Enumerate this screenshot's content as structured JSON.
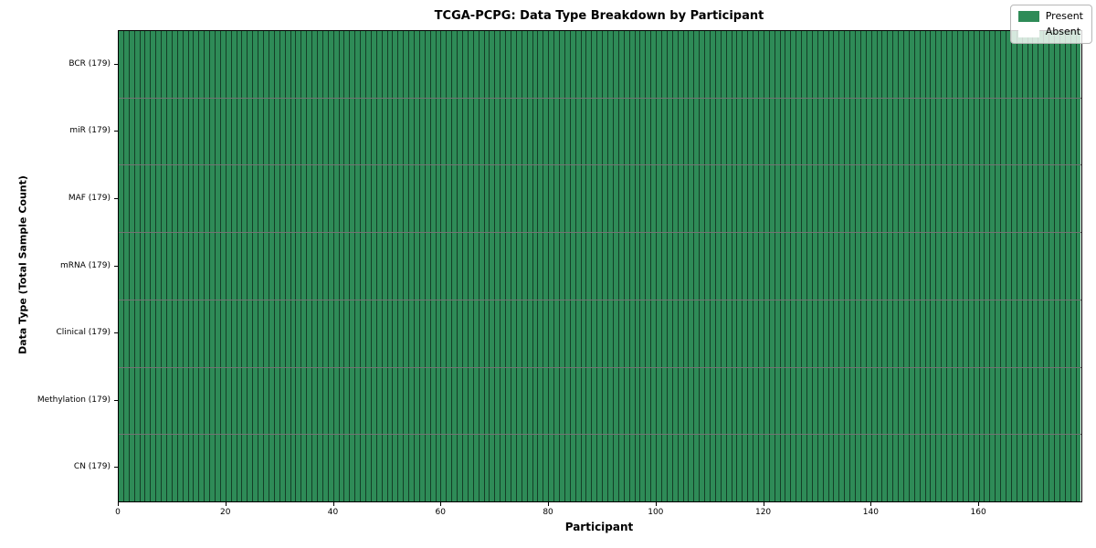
{
  "title": "TCGA-PCPG: Data Type Breakdown by Participant",
  "axes": {
    "xlabel": "Participant",
    "ylabel": "Data Type (Total Sample Count)"
  },
  "legend": {
    "items": [
      {
        "label": "Present",
        "color": "#2e8b57"
      },
      {
        "label": "Absent",
        "color": "#ffffff"
      }
    ]
  },
  "chart_data": {
    "type": "heatmap",
    "title": "TCGA-PCPG: Data Type Breakdown by Participant",
    "xlabel": "Participant",
    "ylabel": "Data Type (Total Sample Count)",
    "x_range": [
      0,
      179
    ],
    "x_ticks": [
      0,
      20,
      40,
      60,
      80,
      100,
      120,
      140,
      160
    ],
    "n_participants": 179,
    "categories": [
      "BCR (179)",
      "miR (179)",
      "MAF (179)",
      "mRNA (179)",
      "Clinical (179)",
      "Methylation (179)",
      "CN (179)"
    ],
    "series": [
      {
        "name": "BCR",
        "total_samples": 179,
        "present": 179,
        "absent": 0
      },
      {
        "name": "miR",
        "total_samples": 179,
        "present": 179,
        "absent": 0
      },
      {
        "name": "MAF",
        "total_samples": 179,
        "present": 179,
        "absent": 0
      },
      {
        "name": "mRNA",
        "total_samples": 179,
        "present": 179,
        "absent": 0
      },
      {
        "name": "Clinical",
        "total_samples": 179,
        "present": 179,
        "absent": 0
      },
      {
        "name": "Methylation",
        "total_samples": 179,
        "present": 179,
        "absent": 0
      },
      {
        "name": "CN",
        "total_samples": 179,
        "present": 179,
        "absent": 0
      }
    ],
    "legend_position": "upper right",
    "grid": false,
    "colors": {
      "present": "#2e8b57",
      "absent": "#ffffff",
      "cell_edge": "rgba(0,0,0,0.55)",
      "plot_border": "#000000"
    }
  }
}
